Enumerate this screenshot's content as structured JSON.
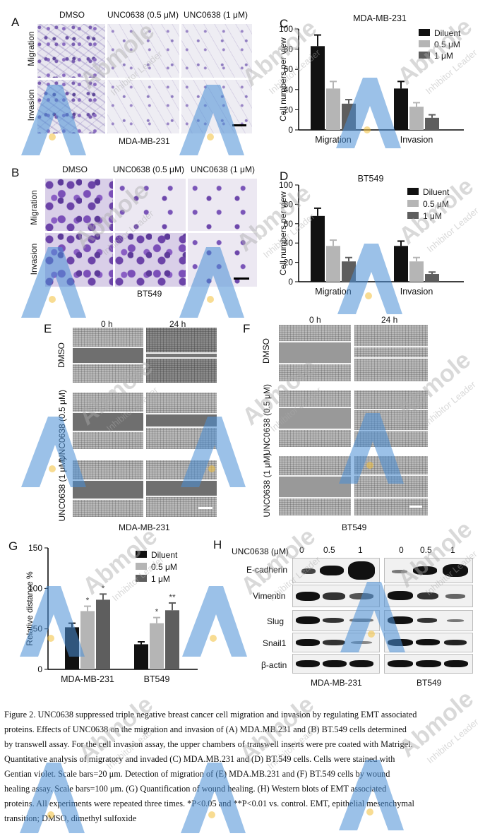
{
  "panel_labels": {
    "a": "A",
    "b": "B",
    "c": "C",
    "d": "D",
    "e": "E",
    "f": "F",
    "g": "G",
    "h": "H"
  },
  "panelA": {
    "cols": [
      "DMSO",
      "UNC0638 (0.5 μM)",
      "UNC0638 (1 μM)"
    ],
    "rows": [
      "Migration",
      "Invasion"
    ],
    "cell_line": "MDA-MB-231"
  },
  "panelB": {
    "cols": [
      "DMSO",
      "UNC0638 (0.5 μM)",
      "UNC0638 (1 μM)"
    ],
    "rows": [
      "Migration",
      "Invasion"
    ],
    "cell_line": "BT549"
  },
  "panelE": {
    "cols": [
      "0 h",
      "24 h"
    ],
    "rows": [
      "DMSO",
      "UNC0638 (0.5 μM)",
      "UNC0638 (1 μM)"
    ],
    "cell_line": "MDA-MB-231"
  },
  "panelF": {
    "cols": [
      "0 h",
      "24 h"
    ],
    "rows": [
      "DMSO",
      "UNC0638 (0.5 μM)",
      "UNC0638 (1 μM)"
    ],
    "cell_line": "BT549"
  },
  "panelH": {
    "header": "UNC0638 (μM)",
    "doses": [
      "0",
      "0.5",
      "1",
      "0",
      "0.5",
      "1"
    ],
    "proteins": [
      "E-cadherin",
      "Vimentin",
      "Slug",
      "Snail1",
      "β-actin"
    ],
    "cell_lines": [
      "MDA-MB-231",
      "BT549"
    ]
  },
  "watermark": {
    "brand": "Abmole",
    "tagline": "Inhibitor Leader"
  },
  "caption": [
    "Figure 2. UNC0638 suppressed triple negative breast cancer cell migration and invasion by regulating EMT associated",
    "proteins. Effects of UNC0638 on the migration and invasion of (A) MDA.MB.231 and (B) BT.549 cells determined",
    "by transwell assay. For the cell invasion assay, the upper chambers of transwell inserts were pre coated with Matrigel.",
    "Quantitative analysis of migratory and invaded (C) MDA.MB.231 and (D) BT.549 cells. Cells were stained with",
    "Gentian violet. Scale bars=20 μm. Detection of migration of (E) MDA.MB.231 and (F) BT.549 cells by wound",
    "healing assay. Scale bars=100 μm. (G) Quantification of wound healing. (H) Western blots of EMT associated",
    "proteins. All experiments were repeated three times. *P<0.05 and **P<0.01 vs. control. EMT, epithelial mesenchymal",
    "transition; DMSO, dimethyl sulfoxide"
  ],
  "chart_data": [
    {
      "id": "C",
      "type": "bar",
      "title": "MDA-MB-231",
      "categories": [
        "Migration",
        "Invasion"
      ],
      "ylabel": "Cell numbers per view",
      "ylim": [
        0,
        100
      ],
      "yticks": [
        0,
        20,
        40,
        60,
        80,
        100
      ],
      "series": [
        {
          "name": "Diluent",
          "color": "#111111",
          "values": [
            83,
            41
          ],
          "errors": [
            11,
            7
          ]
        },
        {
          "name": "0.5 μM",
          "color": "#b5b5b5",
          "values": [
            41,
            23
          ],
          "errors": [
            7,
            4
          ]
        },
        {
          "name": "1 μM",
          "color": "#5e5e5e",
          "values": [
            26,
            12
          ],
          "errors": [
            4,
            3
          ]
        }
      ],
      "legend": "top-right"
    },
    {
      "id": "D",
      "type": "bar",
      "title": "BT549",
      "categories": [
        "Migration",
        "Invasion"
      ],
      "ylabel": "Cell numbers per view",
      "ylim": [
        0,
        100
      ],
      "yticks": [
        0,
        20,
        40,
        60,
        80,
        100
      ],
      "series": [
        {
          "name": "Diluent",
          "color": "#111111",
          "values": [
            68,
            37
          ],
          "errors": [
            8,
            5
          ]
        },
        {
          "name": "0.5 μM",
          "color": "#b5b5b5",
          "values": [
            37,
            21
          ],
          "errors": [
            6,
            4
          ]
        },
        {
          "name": "1 μM",
          "color": "#5e5e5e",
          "values": [
            21,
            8
          ],
          "errors": [
            4,
            2
          ]
        }
      ],
      "legend": "top-right"
    },
    {
      "id": "G",
      "type": "bar",
      "categories": [
        "MDA-MB-231",
        "BT549"
      ],
      "ylabel": "Relative distance %",
      "ylim": [
        0,
        150
      ],
      "yticks": [
        0,
        50,
        100,
        150
      ],
      "series": [
        {
          "name": "Diluent",
          "color": "#111111",
          "values": [
            52,
            31
          ],
          "errors": [
            5,
            3
          ],
          "sig": [
            "",
            ""
          ]
        },
        {
          "name": "0.5 μM",
          "color": "#b5b5b5",
          "values": [
            72,
            57
          ],
          "errors": [
            6,
            7
          ],
          "sig": [
            "*",
            "*"
          ]
        },
        {
          "name": "1 μM",
          "color": "#5e5e5e",
          "values": [
            86,
            73
          ],
          "errors": [
            7,
            9
          ],
          "sig": [
            "*",
            "**"
          ]
        }
      ],
      "legend": "top-right"
    }
  ]
}
